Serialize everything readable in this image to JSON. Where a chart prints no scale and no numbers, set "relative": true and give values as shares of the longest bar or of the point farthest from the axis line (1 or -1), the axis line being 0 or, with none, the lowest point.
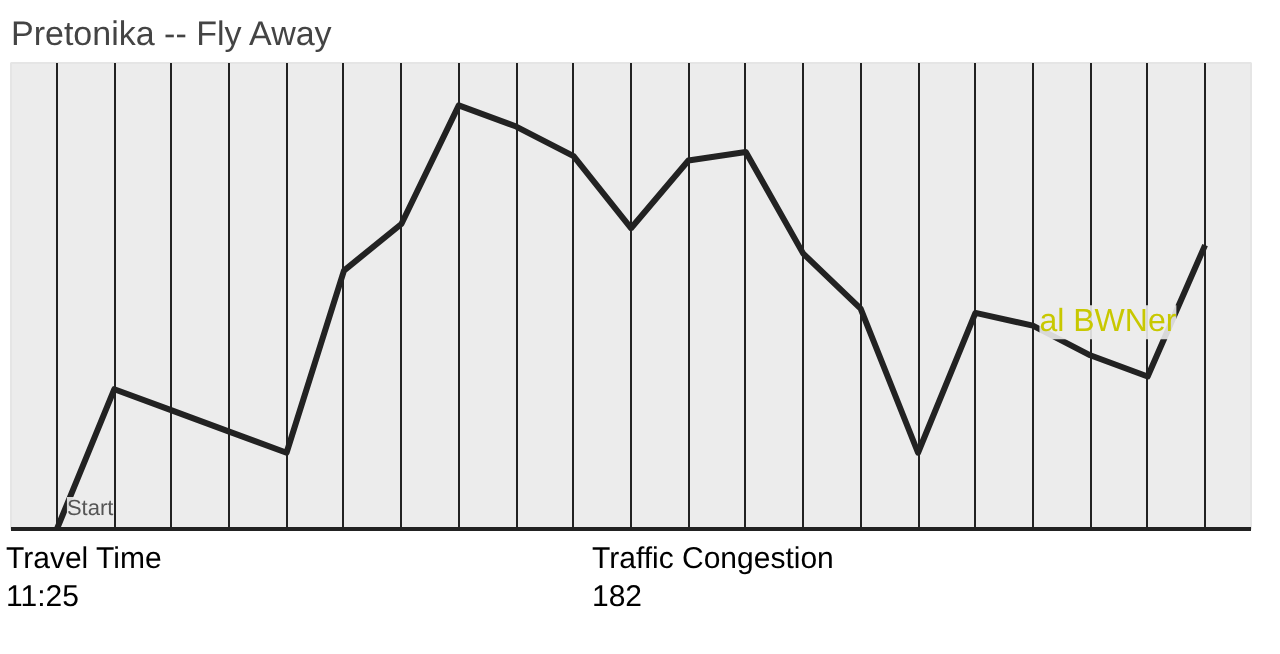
{
  "chart_data": {
    "type": "line",
    "title": "Pretonika -- Fly Away",
    "relative": true,
    "categories": [
      null,
      null,
      null,
      null,
      null,
      null,
      null,
      null,
      null,
      null,
      null,
      null,
      null,
      null,
      null,
      null,
      null,
      null,
      null,
      null,
      null
    ],
    "series": [
      {
        "color": "#222222",
        "values": [
          0,
          0.33,
          0.28,
          0.23,
          0.18,
          0.61,
          0.72,
          1,
          0.95,
          0.88,
          0.71,
          0.87,
          0.89,
          0.65,
          0.52,
          0.18,
          0.51,
          0.48,
          0.41,
          0.36,
          0.67
        ]
      }
    ],
    "annotations": [
      "Start",
      "al BWNer",
      "Travel Time",
      "11:25",
      "Traffic Congestion",
      "182"
    ],
    "grid": "x"
  }
}
